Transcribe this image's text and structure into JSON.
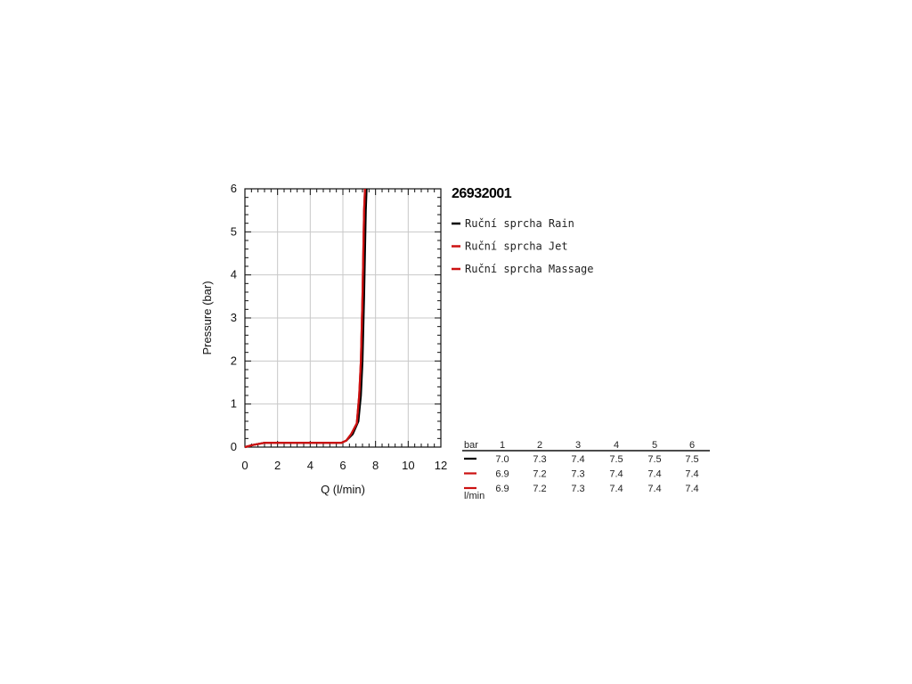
{
  "chart_data": {
    "type": "line",
    "title": "26932001",
    "xlabel": "Q (l/min)",
    "ylabel": "Pressure (bar)",
    "xlim": [
      0,
      12
    ],
    "ylim": [
      0,
      6
    ],
    "x_ticks": [
      "0",
      "2",
      "4",
      "6",
      "8",
      "10",
      "12"
    ],
    "y_ticks": [
      "0",
      "1",
      "2",
      "3",
      "4",
      "5",
      "6"
    ],
    "grid": true,
    "legend_position": "right",
    "series": [
      {
        "name": "Ruční sprcha Rain",
        "color": "#000000",
        "points": [
          [
            0,
            0
          ],
          [
            0.5,
            0.05
          ],
          [
            1.2,
            0.1
          ],
          [
            2,
            0.1
          ],
          [
            4,
            0.1
          ],
          [
            5.9,
            0.1
          ],
          [
            6.2,
            0.15
          ],
          [
            6.6,
            0.3
          ],
          [
            6.95,
            0.6
          ],
          [
            7.1,
            1.2
          ],
          [
            7.2,
            2.0
          ],
          [
            7.3,
            3.5
          ],
          [
            7.4,
            5.5
          ],
          [
            7.45,
            6.0
          ]
        ]
      },
      {
        "name": "Ruční sprcha Jet",
        "color": "#cc1111",
        "points": [
          [
            0,
            0
          ],
          [
            0.5,
            0.05
          ],
          [
            1.2,
            0.1
          ],
          [
            2,
            0.1
          ],
          [
            4,
            0.1
          ],
          [
            5.9,
            0.1
          ],
          [
            6.2,
            0.15
          ],
          [
            6.5,
            0.3
          ],
          [
            6.85,
            0.55
          ],
          [
            7.0,
            1.2
          ],
          [
            7.1,
            2.0
          ],
          [
            7.2,
            3.5
          ],
          [
            7.3,
            5.5
          ],
          [
            7.35,
            6.0
          ]
        ]
      },
      {
        "name": "Ruční sprcha Massage",
        "color": "#cc1111",
        "points": [
          [
            0,
            0
          ],
          [
            0.5,
            0.05
          ],
          [
            1.2,
            0.1
          ],
          [
            2,
            0.1
          ],
          [
            4,
            0.1
          ],
          [
            5.9,
            0.1
          ],
          [
            6.2,
            0.15
          ],
          [
            6.5,
            0.3
          ],
          [
            6.85,
            0.55
          ],
          [
            7.0,
            1.2
          ],
          [
            7.1,
            2.0
          ],
          [
            7.2,
            3.5
          ],
          [
            7.3,
            5.5
          ],
          [
            7.35,
            6.0
          ]
        ]
      }
    ],
    "table": {
      "header_label": "bar",
      "unit_label": "l/min",
      "columns": [
        "1",
        "2",
        "3",
        "4",
        "5",
        "6"
      ],
      "rows": [
        {
          "color": "#000000",
          "values": [
            "7.0",
            "7.3",
            "7.4",
            "7.5",
            "7.5",
            "7.5"
          ]
        },
        {
          "color": "#cc1111",
          "values": [
            "6.9",
            "7.2",
            "7.3",
            "7.4",
            "7.4",
            "7.4"
          ]
        },
        {
          "color": "#cc1111",
          "values": [
            "6.9",
            "7.2",
            "7.3",
            "7.4",
            "7.4",
            "7.4"
          ]
        }
      ]
    }
  }
}
